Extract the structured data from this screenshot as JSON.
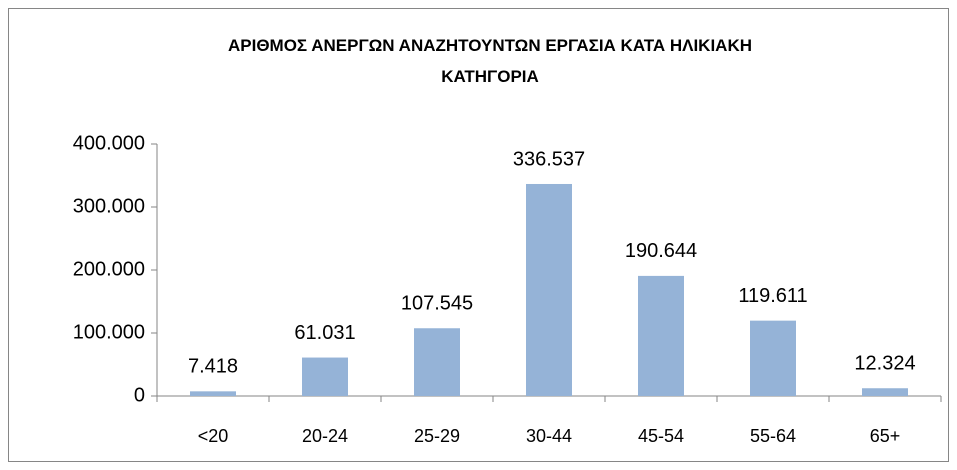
{
  "chart_data": {
    "type": "bar",
    "title": "ΑΡΙΘΜΟΣ ΑΝΕΡΓΩΝ ΑΝΑΖΗΤΟΥΝΤΩΝ ΕΡΓΑΣΙΑ ΚΑΤΑ ΗΛΙΚΙΑΚΗ ΚΑΤΗΓΟΡΙΑ",
    "categories": [
      "<20",
      "20-24",
      "25-29",
      "30-44",
      "45-54",
      "55-64",
      "65+"
    ],
    "values": [
      7418,
      61031,
      107545,
      336537,
      190644,
      119611,
      12324
    ],
    "value_labels": [
      "7.418",
      "61.031",
      "107.545",
      "336.537",
      "190.644",
      "119.611",
      "12.324"
    ],
    "color": "#95b3d7",
    "ylim": [
      0,
      400000
    ],
    "yticks": [
      0,
      {
        "value": 100000,
        "label": "100.000"
      },
      {
        "value": 200000,
        "label": "200.000"
      },
      {
        "value": 300000,
        "label": "300.000"
      },
      {
        "value": 400000,
        "label": "400.000"
      }
    ]
  }
}
